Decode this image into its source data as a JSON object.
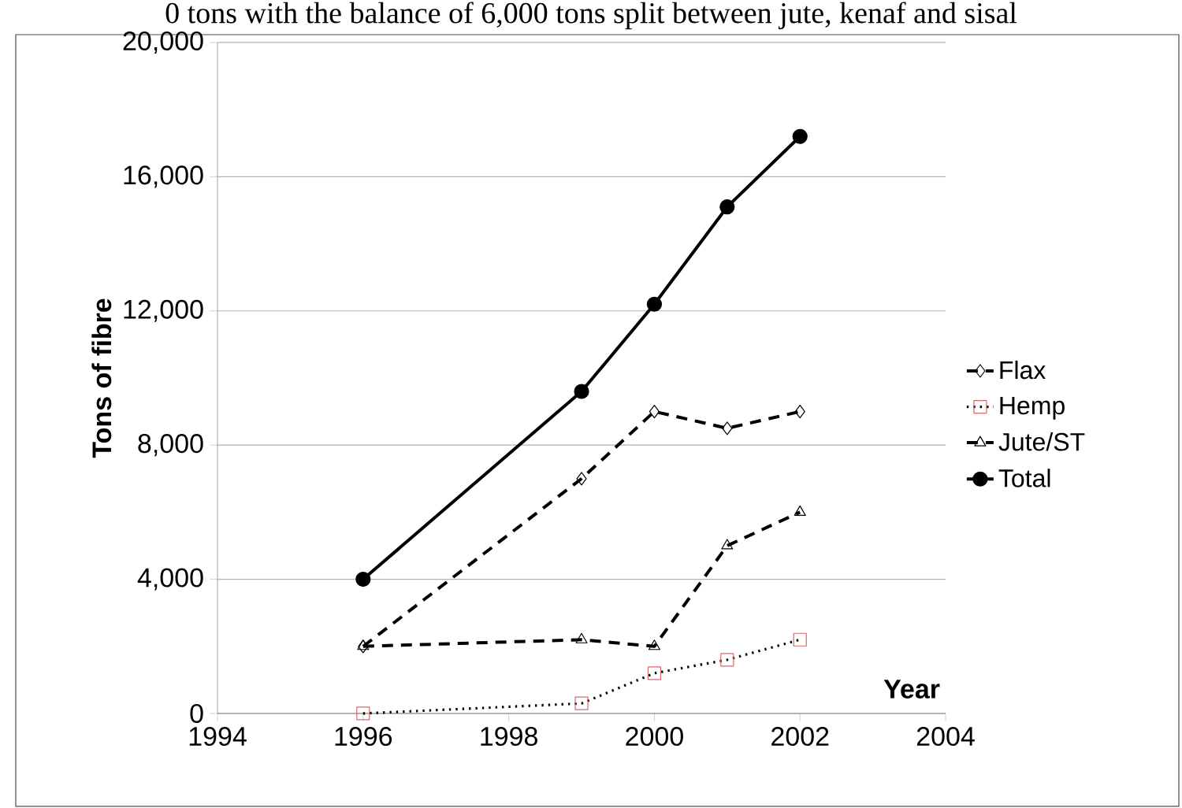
{
  "chart_data": {
    "type": "line",
    "annotations": [
      "0 tons with the balance of 6,000 tons split between jute, kenaf and sisal"
    ],
    "xlabel": "Year",
    "ylabel": "Tons of fibre",
    "series": [
      {
        "name": "Flax",
        "color": "#000000",
        "marker": "diamond",
        "line_style": "dashed",
        "x": [
          1996,
          1999,
          2000,
          2001,
          2002
        ],
        "values": [
          2000,
          7000,
          9000,
          8500,
          9000
        ]
      },
      {
        "name": "Hemp",
        "color": "#d46a6a",
        "marker": "square",
        "line_style": "dotted",
        "x": [
          1996,
          1999,
          2000,
          2001,
          2002
        ],
        "values": [
          0,
          300,
          1200,
          1600,
          2200
        ]
      },
      {
        "name": "Jute/ST",
        "color": "#000000",
        "marker": "triangle",
        "line_style": "dashed",
        "x": [
          1996,
          1999,
          2000,
          2001,
          2002
        ],
        "values": [
          2000,
          2200,
          2000,
          5000,
          6000
        ]
      },
      {
        "name": "Total",
        "color": "#000000",
        "marker": "circle",
        "line_style": "solid",
        "x": [
          1996,
          1999,
          2000,
          2001,
          2002
        ],
        "values": [
          4000,
          9600,
          12200,
          15100,
          17200
        ]
      }
    ],
    "xlim": [
      1994,
      2004
    ],
    "xticks": [
      1994,
      1996,
      1998,
      2000,
      2002,
      2004
    ],
    "ylim": [
      0,
      20000
    ],
    "yticks": [
      {
        "value": 0,
        "label": "0"
      },
      {
        "value": 4000,
        "label": "4,000"
      },
      {
        "value": 8000,
        "label": "8,000"
      },
      {
        "value": 12000,
        "label": "12,000"
      },
      {
        "value": 16000,
        "label": "16,000"
      },
      {
        "value": 20000,
        "label": "20,000"
      }
    ],
    "grid": "y",
    "legend": "right"
  }
}
